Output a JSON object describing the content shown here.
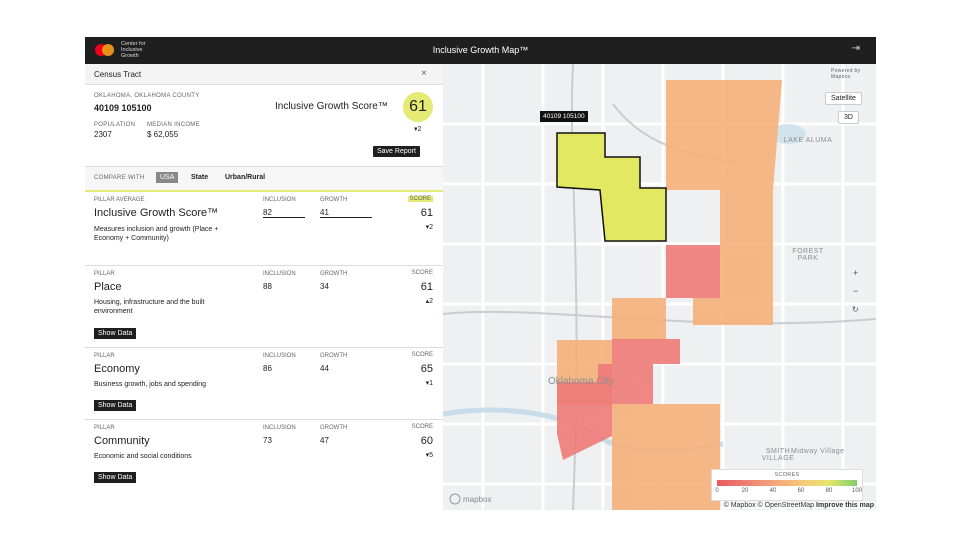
{
  "header": {
    "brand": "Center for Inclusive Growth",
    "title": "Inclusive Growth Map™"
  },
  "panel": {
    "title": "Census Tract",
    "location": "OKLAHOMA, OKLAHOMA COUNTY",
    "tract": "40109 105100",
    "population_label": "POPULATION",
    "population": "2307",
    "income_label": "MEDIAN INCOME",
    "income": "$ 62,055",
    "score_label": "Inclusive Growth Score™",
    "score": "61",
    "score_change": "▾2",
    "save_button": "Save Report",
    "compare_label": "COMPARE WITH",
    "compare_options": [
      "USA",
      "State",
      "Urban/Rural"
    ],
    "pillars": [
      {
        "kicker": "PILLAR AVERAGE",
        "name": "Inclusive Growth Score™",
        "description": "Measures inclusion and growth (Place + Economy + Community)",
        "inclusion_label": "INCLUSION",
        "inclusion": "82",
        "growth_label": "GROWTH",
        "growth": "41",
        "score_label": "SCORE",
        "score": "61",
        "change": "▾2"
      },
      {
        "kicker": "PILLAR",
        "name": "Place",
        "description": "Housing, infrastructure and the built environment",
        "inclusion_label": "INCLUSION",
        "inclusion": "88",
        "growth_label": "GROWTH",
        "growth": "34",
        "score_label": "SCORE",
        "score": "61",
        "change": "▴2",
        "button": "Show Data"
      },
      {
        "kicker": "PILLAR",
        "name": "Economy",
        "description": "Business growth, jobs and spending",
        "inclusion_label": "INCLUSION",
        "inclusion": "86",
        "growth_label": "GROWTH",
        "growth": "44",
        "score_label": "SCORE",
        "score": "65",
        "change": "▾1",
        "button": "Show Data"
      },
      {
        "kicker": "PILLAR",
        "name": "Community",
        "description": "Economic and social conditions",
        "inclusion_label": "INCLUSION",
        "inclusion": "73",
        "growth_label": "GROWTH",
        "growth": "47",
        "score_label": "SCORE",
        "score": "60",
        "change": "▾5",
        "button": "Show Data"
      }
    ]
  },
  "map": {
    "tooltip": "40109 105100",
    "buttons": [
      "Satellite",
      "3D"
    ],
    "powered_by": "Powered by Mapbox",
    "labels": [
      "LAKE ALUMA",
      "FOREST PARK",
      "Oklahoma City",
      "Midway Village",
      "SMITH VILLAGE"
    ],
    "legend_title": "SCORES",
    "legend_ticks": [
      "0",
      "20",
      "40",
      "60",
      "80",
      "100"
    ],
    "logo": "mapbox",
    "attribution": "© Mapbox © OpenStreetMap",
    "improve": "Improve this map"
  }
}
